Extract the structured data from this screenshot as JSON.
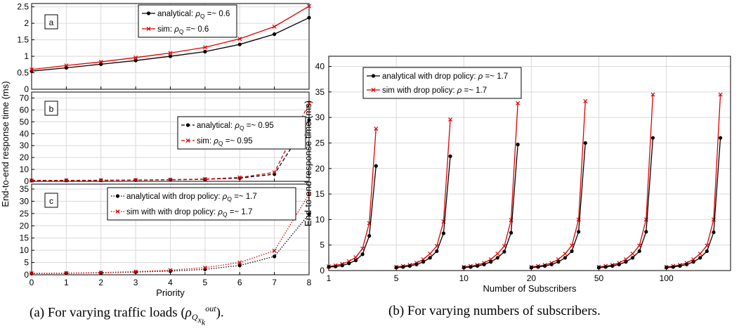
{
  "figure": {
    "caption_a_prefix": "(a) For varying traffic loads (",
    "caption_a_symbol": "ρ",
    "caption_a_sub": "Q",
    "caption_a_subsub": "x",
    "caption_a_subsubsub": "k",
    "caption_a_sup": "out",
    "caption_a_suffix": ").",
    "caption_b": "(b) For varying numbers of subscribers."
  },
  "colors": {
    "analytical": "#000000",
    "sim": "#e00000",
    "grid": "#d9d9d9",
    "axis": "#000000"
  },
  "chart_data": [
    {
      "type": "line",
      "panel_label": "a",
      "x": [
        0,
        1,
        2,
        3,
        4,
        5,
        6,
        7,
        8
      ],
      "xlim": [
        0,
        8
      ],
      "ylim": [
        0,
        2.6
      ],
      "yticks": [
        "0",
        "0.5",
        "1",
        "1.5",
        "2",
        "2.5"
      ],
      "ytick_values": [
        0,
        0.5,
        1,
        1.5,
        2,
        2.5
      ],
      "grid": true,
      "legend_position": "top-right",
      "line_style": "solid",
      "series": [
        {
          "name": "analytical: ρ_Q =~ 0.6",
          "values": [
            0.55,
            0.65,
            0.76,
            0.87,
            1.0,
            1.14,
            1.36,
            1.67,
            2.17
          ]
        },
        {
          "name": "sim: ρ_Q =~ 0.6",
          "values": [
            0.6,
            0.72,
            0.83,
            0.96,
            1.1,
            1.27,
            1.53,
            1.9,
            2.52
          ]
        }
      ]
    },
    {
      "type": "line",
      "panel_label": "b",
      "x": [
        0,
        1,
        2,
        3,
        4,
        5,
        6,
        7,
        8
      ],
      "xlim": [
        0,
        8
      ],
      "ylim": [
        0,
        75
      ],
      "yticks": [
        "0",
        "10",
        "20",
        "30",
        "40",
        "50",
        "60",
        "70"
      ],
      "ytick_values": [
        0,
        10,
        20,
        30,
        40,
        50,
        60,
        70
      ],
      "grid": true,
      "legend_position": "right",
      "line_style": "dashed",
      "series": [
        {
          "name": "analytical: ρ_Q =~ 0.95",
          "values": [
            0.6,
            0.7,
            0.8,
            1.0,
            1.3,
            1.7,
            2.7,
            6.0,
            51.5
          ]
        },
        {
          "name": "sim: ρ_Q =~ 0.95",
          "values": [
            0.7,
            0.8,
            0.9,
            1.1,
            1.4,
            1.9,
            3.2,
            7.5,
            65.5
          ]
        }
      ]
    },
    {
      "type": "line",
      "panel_label": "c",
      "x": [
        0,
        1,
        2,
        3,
        4,
        5,
        6,
        7,
        8
      ],
      "xlim": [
        0,
        8
      ],
      "ylim": [
        0,
        37
      ],
      "yticks": [
        "0",
        "5",
        "10",
        "15",
        "20",
        "25",
        "30",
        "35"
      ],
      "ytick_values": [
        0,
        5,
        10,
        15,
        20,
        25,
        30,
        35
      ],
      "xticks": [
        "0",
        "1",
        "2",
        "3",
        "4",
        "5",
        "6",
        "7",
        "8"
      ],
      "xlabel": "Priority",
      "grid": true,
      "legend_position": "top-right",
      "line_style": "dotted",
      "series": [
        {
          "name": "analytical with drop policy: ρ_Q =~ 1.7",
          "values": [
            0.5,
            0.6,
            0.8,
            1.1,
            1.5,
            2.2,
            3.8,
            7.5,
            24.8
          ]
        },
        {
          "name": "sim with with drop policy: ρ_Q =~ 1.7",
          "values": [
            0.6,
            0.7,
            0.9,
            1.3,
            1.9,
            2.9,
            5.0,
            9.8,
            33.0
          ]
        }
      ]
    },
    {
      "type": "line",
      "panel_label": "",
      "xlim": [
        1,
        120
      ],
      "ylim": [
        0,
        42
      ],
      "yticks": [
        "0",
        "5",
        "10",
        "15",
        "20",
        "25",
        "30",
        "35",
        "40"
      ],
      "ytick_values": [
        0,
        5,
        10,
        15,
        20,
        25,
        30,
        35,
        40
      ],
      "xticks": [
        "1",
        "5",
        "10",
        "20",
        "50",
        "100"
      ],
      "xtick_positions": [
        1,
        21,
        41,
        61,
        81,
        101
      ],
      "xlabel": "Number of Subscribers",
      "ylabel": "End-to-end response time (ms)",
      "grid": true,
      "legend_position": "top-left",
      "series": [
        {
          "name": "analytical with drop policy: ρ =~ 1.7",
          "segments": [
            {
              "x": [
                1,
                3,
                5,
                7,
                9,
                11,
                13,
                15,
                17
              ],
              "values": [
                0.7,
                0.8,
                1.0,
                1.4,
                2.0,
                3.2,
                6.8,
                20.5,
                0
              ]
            },
            {
              "x": [
                21,
                23,
                25,
                27,
                29,
                31,
                33,
                35,
                37
              ],
              "values": [
                0.6,
                0.7,
                0.9,
                1.2,
                1.7,
                2.5,
                3.8,
                7.3,
                22.4
              ]
            },
            {
              "x": [
                41,
                43,
                45,
                47,
                49,
                51,
                53,
                55,
                57
              ],
              "values": [
                0.6,
                0.7,
                0.9,
                1.2,
                1.7,
                2.5,
                3.7,
                7.4,
                24.7
              ]
            },
            {
              "x": [
                61,
                63,
                65,
                67,
                69,
                71,
                73,
                75,
                77
              ],
              "values": [
                0.6,
                0.7,
                0.9,
                1.2,
                1.7,
                2.5,
                3.8,
                7.6,
                25.0
              ]
            },
            {
              "x": [
                81,
                83,
                85,
                87,
                89,
                91,
                93,
                95,
                97
              ],
              "values": [
                0.6,
                0.7,
                0.9,
                1.2,
                1.7,
                2.5,
                3.8,
                7.6,
                26.0
              ]
            },
            {
              "x": [
                101,
                103,
                105,
                107,
                109,
                111,
                113,
                115,
                117
              ],
              "values": [
                0.6,
                0.7,
                0.9,
                1.2,
                1.7,
                2.5,
                3.8,
                7.5,
                26.0
              ]
            }
          ]
        },
        {
          "name": "sim with drop policy: ρ =~ 1.7",
          "segments": [
            {
              "x": [
                1,
                3,
                5,
                7,
                9,
                11,
                13,
                15,
                17
              ],
              "values": [
                0.8,
                1.0,
                1.3,
                1.8,
                2.6,
                4.3,
                9.3,
                27.8,
                0
              ]
            },
            {
              "x": [
                21,
                23,
                25,
                27,
                29,
                31,
                33,
                35,
                37
              ],
              "values": [
                0.7,
                0.9,
                1.1,
                1.5,
                2.2,
                3.3,
                4.8,
                9.6,
                29.6
              ]
            },
            {
              "x": [
                41,
                43,
                45,
                47,
                49,
                51,
                53,
                55,
                57
              ],
              "values": [
                0.7,
                0.9,
                1.1,
                1.5,
                2.2,
                3.3,
                4.8,
                9.9,
                32.8
              ]
            },
            {
              "x": [
                61,
                63,
                65,
                67,
                69,
                71,
                73,
                75,
                77
              ],
              "values": [
                0.7,
                0.9,
                1.1,
                1.5,
                2.2,
                3.3,
                4.9,
                10.0,
                33.2
              ]
            },
            {
              "x": [
                81,
                83,
                85,
                87,
                89,
                91,
                93,
                95,
                97
              ],
              "values": [
                0.7,
                0.9,
                1.1,
                1.5,
                2.2,
                3.3,
                4.9,
                10.0,
                34.5
              ]
            },
            {
              "x": [
                101,
                103,
                105,
                107,
                109,
                111,
                113,
                115,
                117
              ],
              "values": [
                0.7,
                0.9,
                1.1,
                1.5,
                2.2,
                3.3,
                4.9,
                10.0,
                34.5
              ]
            }
          ]
        }
      ]
    }
  ],
  "shared_ylabel_left": "End-to-end response time (ms)"
}
